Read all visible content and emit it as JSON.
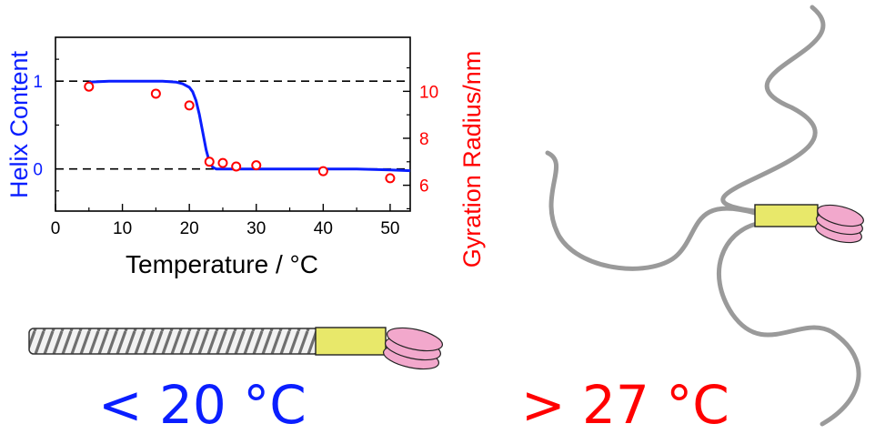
{
  "colors": {
    "helix": "#0a1eff",
    "gyration": "#ff0000",
    "axis": "#000000",
    "chain": "#9a9a9a",
    "block": "#e8e86a",
    "blob": "#f2a8cc",
    "rod": "#6f6f6f"
  },
  "chart_data": {
    "type": "line",
    "xlabel": "Temperature / °C",
    "ylabel_left": "Helix Content",
    "ylabel_right": "Gyration Radius/nm",
    "xlim": [
      0,
      53
    ],
    "ylim_left": [
      -0.48,
      1.5
    ],
    "ylim_right": [
      4.9,
      12.3
    ],
    "x_ticks": [
      0,
      10,
      20,
      30,
      40,
      50
    ],
    "y_left_ticks": [
      0,
      1
    ],
    "y_right_ticks": [
      6,
      8,
      10
    ],
    "grid": false,
    "reference_lines": [
      {
        "axis": "left",
        "y": 1,
        "style": "dashed"
      },
      {
        "axis": "left",
        "y": 0,
        "style": "dashed"
      }
    ],
    "series": [
      {
        "axis": "left",
        "kind": "line",
        "x": [
          5,
          8,
          10,
          12,
          14,
          16,
          18,
          19,
          20,
          20.5,
          21,
          21.5,
          22,
          22.5,
          23,
          23.5,
          24,
          26,
          30,
          35,
          40,
          45,
          50,
          53
        ],
        "y": [
          0.99,
          1.0,
          1.0,
          1.0,
          1.0,
          1.0,
          0.99,
          0.97,
          0.93,
          0.88,
          0.78,
          0.62,
          0.42,
          0.22,
          0.08,
          0.02,
          0.0,
          0.0,
          0.0,
          0.0,
          0.0,
          0.0,
          -0.01,
          -0.02
        ]
      },
      {
        "axis": "right",
        "kind": "scatter",
        "x": [
          5,
          15,
          20,
          23,
          25,
          27,
          30,
          40,
          50
        ],
        "y": [
          10.2,
          9.9,
          9.4,
          7.0,
          6.95,
          6.8,
          6.85,
          6.6,
          6.3
        ]
      }
    ]
  },
  "labels": {
    "low_temp": "< 20 °C",
    "high_temp": "> 27 °C"
  }
}
